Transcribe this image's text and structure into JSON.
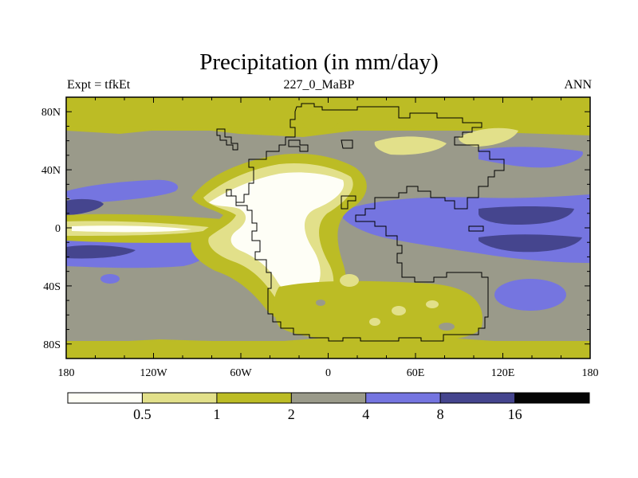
{
  "title": "Precipitation (in mm/day)",
  "subtitle_left": "Expt = tfkEt",
  "subtitle_center": "227_0_MaBP",
  "subtitle_right": "ANN",
  "colors": {
    "c0": "#fefef6",
    "c1": "#e2e08a",
    "c2": "#bcbc25",
    "c3": "#9a9a8a",
    "c4": "#7575e0",
    "c5": "#45458e",
    "c6": "#050505",
    "coast": "#000000"
  },
  "map": {
    "projection": "cylindrical equidistant",
    "lon_range": [
      -180,
      180
    ],
    "lat_range": [
      -90,
      90
    ],
    "x_ticks": [
      "180",
      "120W",
      "60W",
      "0",
      "60E",
      "120E",
      "180"
    ],
    "y_ticks": [
      "80N",
      "40N",
      "0",
      "40S",
      "80S"
    ]
  },
  "colorbar": {
    "levels": [
      "0.5",
      "1",
      "2",
      "4",
      "8",
      "16"
    ],
    "colors": [
      "#fefef6",
      "#e2e08a",
      "#bcbc25",
      "#9a9a8a",
      "#7575e0",
      "#45458e",
      "#050505"
    ]
  }
}
